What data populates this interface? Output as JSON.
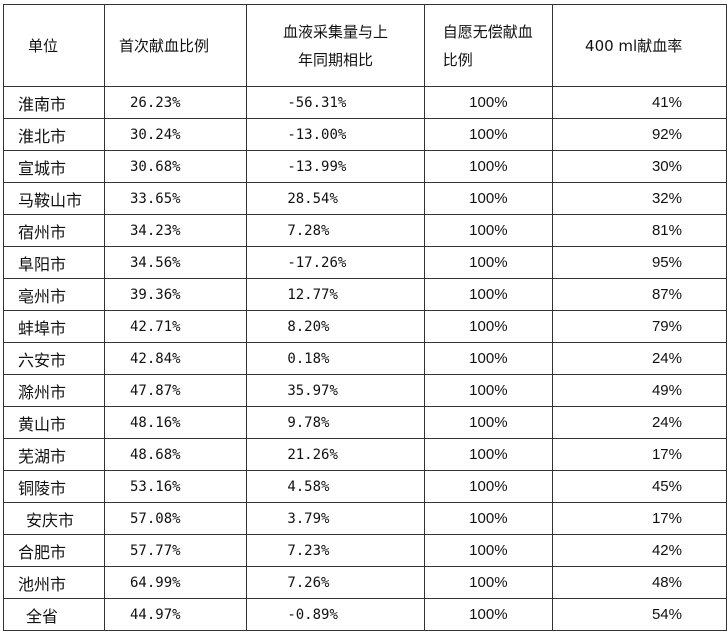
{
  "table": {
    "headers": {
      "unit": "单位",
      "first_ratio": "首次献血比例",
      "collection_line1": "血液采集量与上",
      "collection_line2": "年同期相比",
      "voluntary_line1": "自愿无偿献血",
      "voluntary_line2": "比例",
      "ml400_rate": "400 ml献血率"
    },
    "rows": [
      {
        "unit": "淮南市",
        "first_ratio": "26.23%",
        "collection": "-56.31%",
        "voluntary": "100%",
        "ml400": "41%"
      },
      {
        "unit": "淮北市",
        "first_ratio": "30.24%",
        "collection": "-13.00%",
        "voluntary": "100%",
        "ml400": "92%"
      },
      {
        "unit": "宣城市",
        "first_ratio": "30.68%",
        "collection": "-13.99%",
        "voluntary": "100%",
        "ml400": "30%"
      },
      {
        "unit": "马鞍山市",
        "first_ratio": "33.65%",
        "collection": "28.54%",
        "voluntary": "100%",
        "ml400": "32%"
      },
      {
        "unit": "宿州市",
        "first_ratio": "34.23%",
        "collection": "7.28%",
        "voluntary": "100%",
        "ml400": "81%"
      },
      {
        "unit": "阜阳市",
        "first_ratio": "34.56%",
        "collection": "-17.26%",
        "voluntary": "100%",
        "ml400": "95%"
      },
      {
        "unit": "亳州市",
        "first_ratio": "39.36%",
        "collection": "12.77%",
        "voluntary": "100%",
        "ml400": "87%"
      },
      {
        "unit": "蚌埠市",
        "first_ratio": "42.71%",
        "collection": "8.20%",
        "voluntary": "100%",
        "ml400": "79%"
      },
      {
        "unit": "六安市",
        "first_ratio": "42.84%",
        "collection": "0.18%",
        "voluntary": "100%",
        "ml400": "24%"
      },
      {
        "unit": "滁州市",
        "first_ratio": "47.87%",
        "collection": "35.97%",
        "voluntary": "100%",
        "ml400": "49%"
      },
      {
        "unit": "黄山市",
        "first_ratio": "48.16%",
        "collection": "9.78%",
        "voluntary": "100%",
        "ml400": "24%"
      },
      {
        "unit": "芜湖市",
        "first_ratio": "48.68%",
        "collection": "21.26%",
        "voluntary": "100%",
        "ml400": "17%"
      },
      {
        "unit": "铜陵市",
        "first_ratio": "53.16%",
        "collection": "4.58%",
        "voluntary": "100%",
        "ml400": "45%"
      },
      {
        "unit": "安庆市",
        "first_ratio": "57.08%",
        "collection": "3.79%",
        "voluntary": "100%",
        "ml400": "17%"
      },
      {
        "unit": "合肥市",
        "first_ratio": "57.77%",
        "collection": "7.23%",
        "voluntary": "100%",
        "ml400": "42%"
      },
      {
        "unit": "池州市",
        "first_ratio": "64.99%",
        "collection": "7.26%",
        "voluntary": "100%",
        "ml400": "48%"
      },
      {
        "unit": "全省",
        "first_ratio": "44.97%",
        "collection": "-0.89%",
        "voluntary": "100%",
        "ml400": "54%"
      }
    ]
  }
}
